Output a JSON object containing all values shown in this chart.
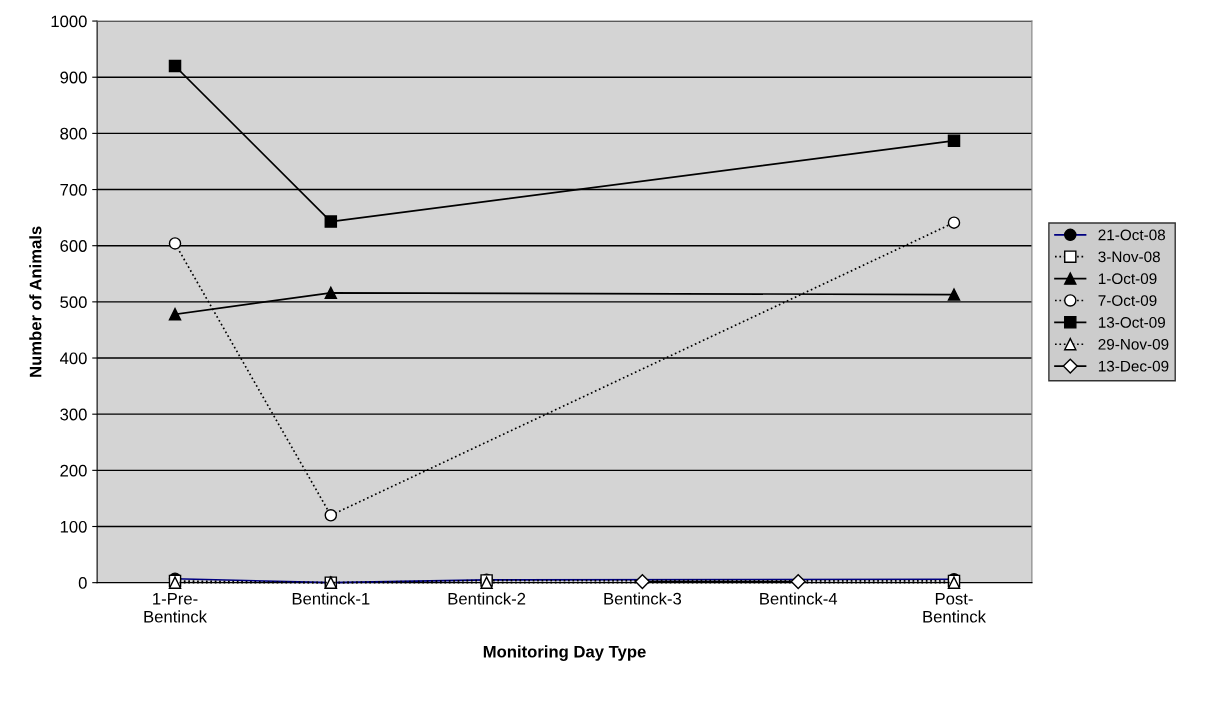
{
  "chart_data": {
    "type": "line",
    "xlabel": "Monitoring Day Type",
    "ylabel": "Number of Animals",
    "categories": [
      "1-Pre-\nBentinck",
      "Bentinck-1",
      "Bentinck-2",
      "Bentinck-3",
      "Bentinck-4",
      "Post-\nBentinck"
    ],
    "ylim": [
      0,
      1000
    ],
    "yticks": [
      0,
      100,
      200,
      300,
      400,
      500,
      600,
      700,
      800,
      900,
      1000
    ],
    "grid": "y",
    "legend": "right",
    "series": [
      {
        "name": "21-Oct-08",
        "color": "#000080",
        "marker": "circle",
        "line_style": "solid",
        "values": [
          7,
          0,
          5,
          null,
          null,
          6
        ]
      },
      {
        "name": "3-Nov-08",
        "color": "#000000",
        "marker": "square",
        "line_style": "dotted",
        "values": [
          3,
          0,
          4,
          null,
          null,
          3
        ]
      },
      {
        "name": "1-Oct-09",
        "color": "#000000",
        "marker": "triangle",
        "line_style": "solid",
        "values": [
          478,
          516,
          null,
          null,
          null,
          513
        ]
      },
      {
        "name": "7-Oct-09",
        "color": "#000000",
        "marker": "circle",
        "line_style": "dotted",
        "values": [
          604,
          120,
          null,
          null,
          null,
          641
        ]
      },
      {
        "name": "13-Oct-09",
        "color": "#000000",
        "marker": "square",
        "line_style": "solid",
        "values": [
          920,
          643,
          null,
          null,
          null,
          787
        ]
      },
      {
        "name": "29-Nov-09",
        "color": "#000000",
        "marker": "triangle",
        "line_style": "dotted",
        "values": [
          0,
          0,
          0,
          null,
          null,
          0
        ]
      },
      {
        "name": "13-Dec-09",
        "color": "#000000",
        "marker": "diamond",
        "line_style": "solid",
        "values": [
          null,
          null,
          null,
          2,
          2,
          null
        ]
      }
    ]
  }
}
